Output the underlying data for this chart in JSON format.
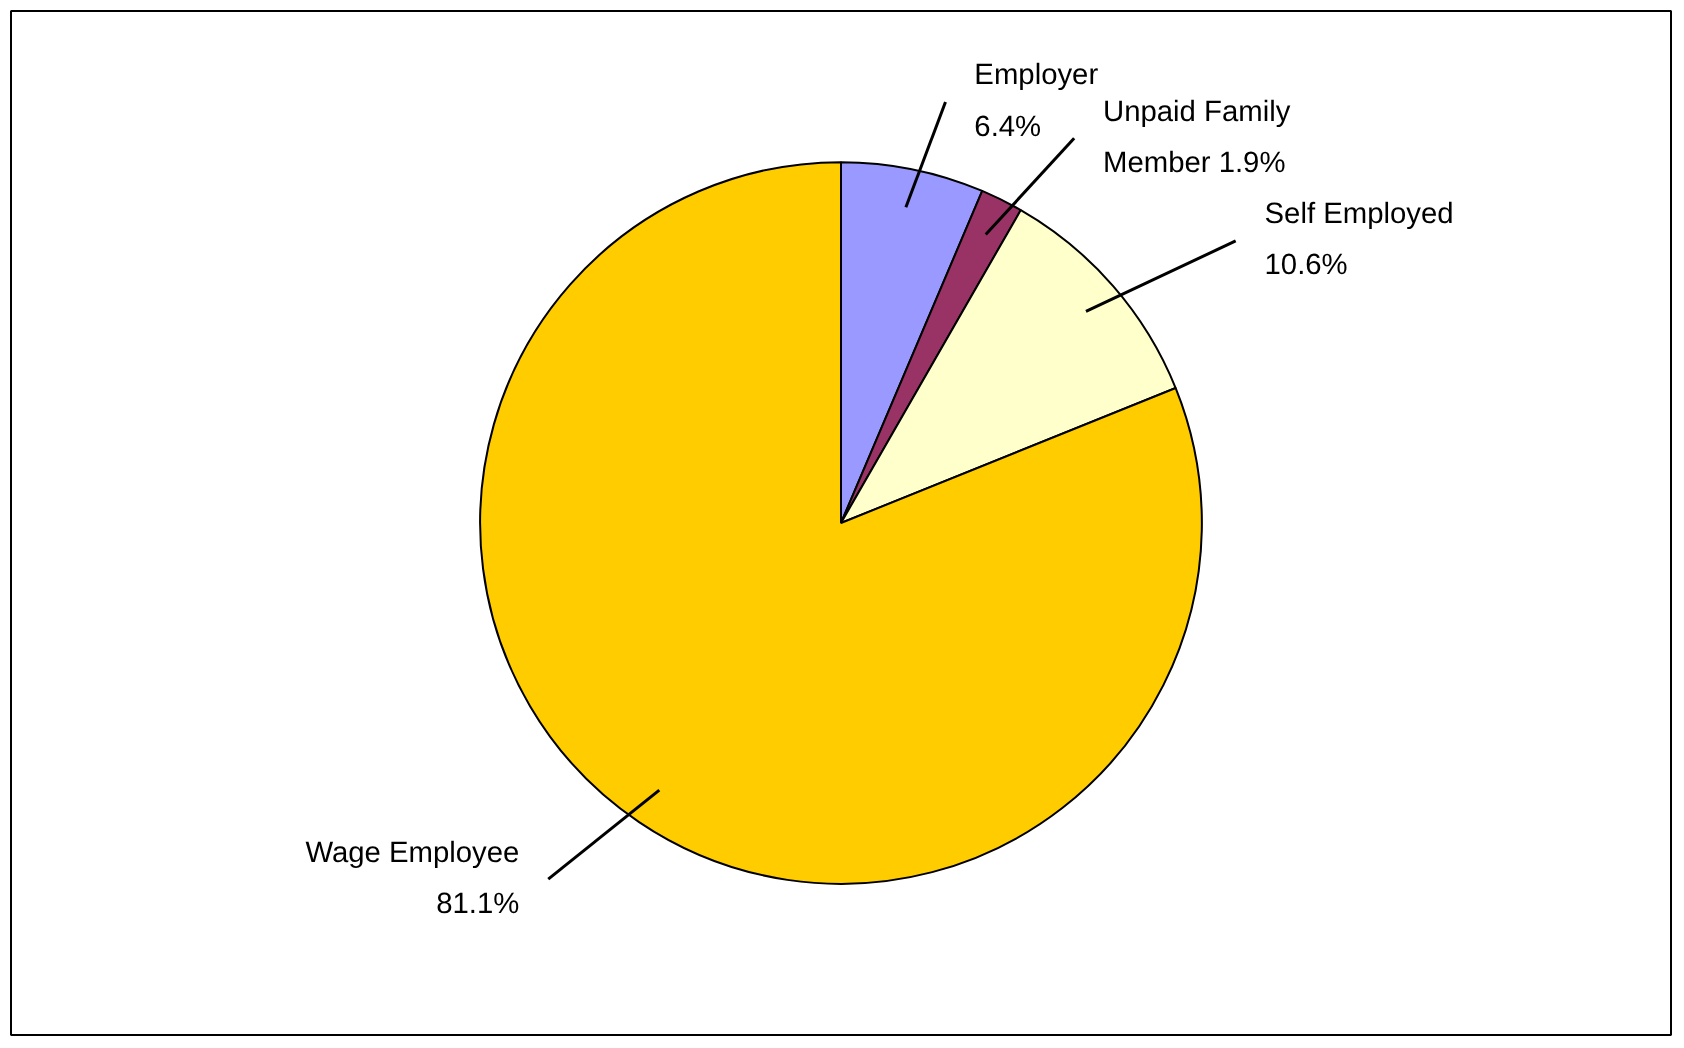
{
  "chart_data": {
    "type": "pie",
    "categories": [
      "Employer",
      "Unpaid Family Member",
      "Self Employed",
      "Wage Employee"
    ],
    "values": [
      6.4,
      1.9,
      10.6,
      81.1
    ],
    "colors": [
      "#9999ff",
      "#993366",
      "#ffffcc",
      "#ffcc00"
    ],
    "value_labels": [
      "6.4%",
      "1.9%",
      "10.6%",
      "81.1%"
    ]
  }
}
